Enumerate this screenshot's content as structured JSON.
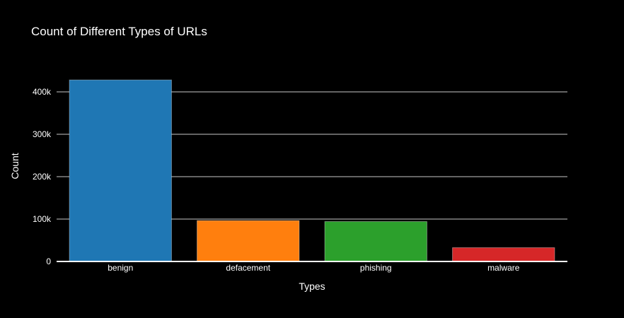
{
  "chart_data": {
    "type": "bar",
    "title": "Count of Different Types of URLs",
    "xlabel": "Types",
    "ylabel": "Count",
    "categories": [
      "benign",
      "defacement",
      "phishing",
      "malware"
    ],
    "values": [
      428103,
      96457,
      94111,
      32520
    ],
    "colors": [
      "#1f77b4",
      "#ff7f0e",
      "#2ca02c",
      "#d62728"
    ],
    "ylim": [
      0,
      450000
    ],
    "yticks": [
      0,
      100000,
      200000,
      300000,
      400000
    ],
    "ytick_labels": [
      "0",
      "100k",
      "200k",
      "300k",
      "400k"
    ],
    "grid": true,
    "legend": "none",
    "background": "#000000"
  }
}
